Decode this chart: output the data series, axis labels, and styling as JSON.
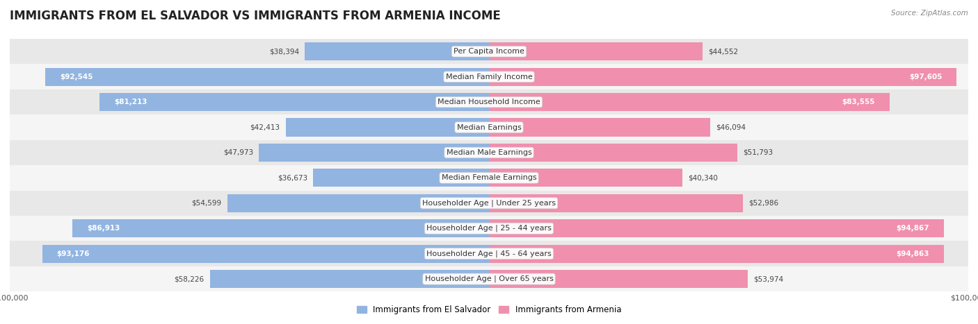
{
  "title": "IMMIGRANTS FROM EL SALVADOR VS IMMIGRANTS FROM ARMENIA INCOME",
  "source": "Source: ZipAtlas.com",
  "categories": [
    "Per Capita Income",
    "Median Family Income",
    "Median Household Income",
    "Median Earnings",
    "Median Male Earnings",
    "Median Female Earnings",
    "Householder Age | Under 25 years",
    "Householder Age | 25 - 44 years",
    "Householder Age | 45 - 64 years",
    "Householder Age | Over 65 years"
  ],
  "el_salvador": [
    38394,
    92545,
    81213,
    42413,
    47973,
    36673,
    54599,
    86913,
    93176,
    58226
  ],
  "armenia": [
    44552,
    97605,
    83555,
    46094,
    51793,
    40340,
    52986,
    94867,
    94863,
    53974
  ],
  "el_salvador_color": "#92b4e0",
  "armenia_color": "#f08fae",
  "el_salvador_label": "Immigrants from El Salvador",
  "armenia_label": "Immigrants from Armenia",
  "max_value": 100000,
  "bg_color": "#ffffff",
  "row_colors": [
    "#e8e8e8",
    "#f5f5f5"
  ],
  "title_fontsize": 12,
  "label_fontsize": 8,
  "value_fontsize": 7.5,
  "axis_label_fontsize": 8
}
